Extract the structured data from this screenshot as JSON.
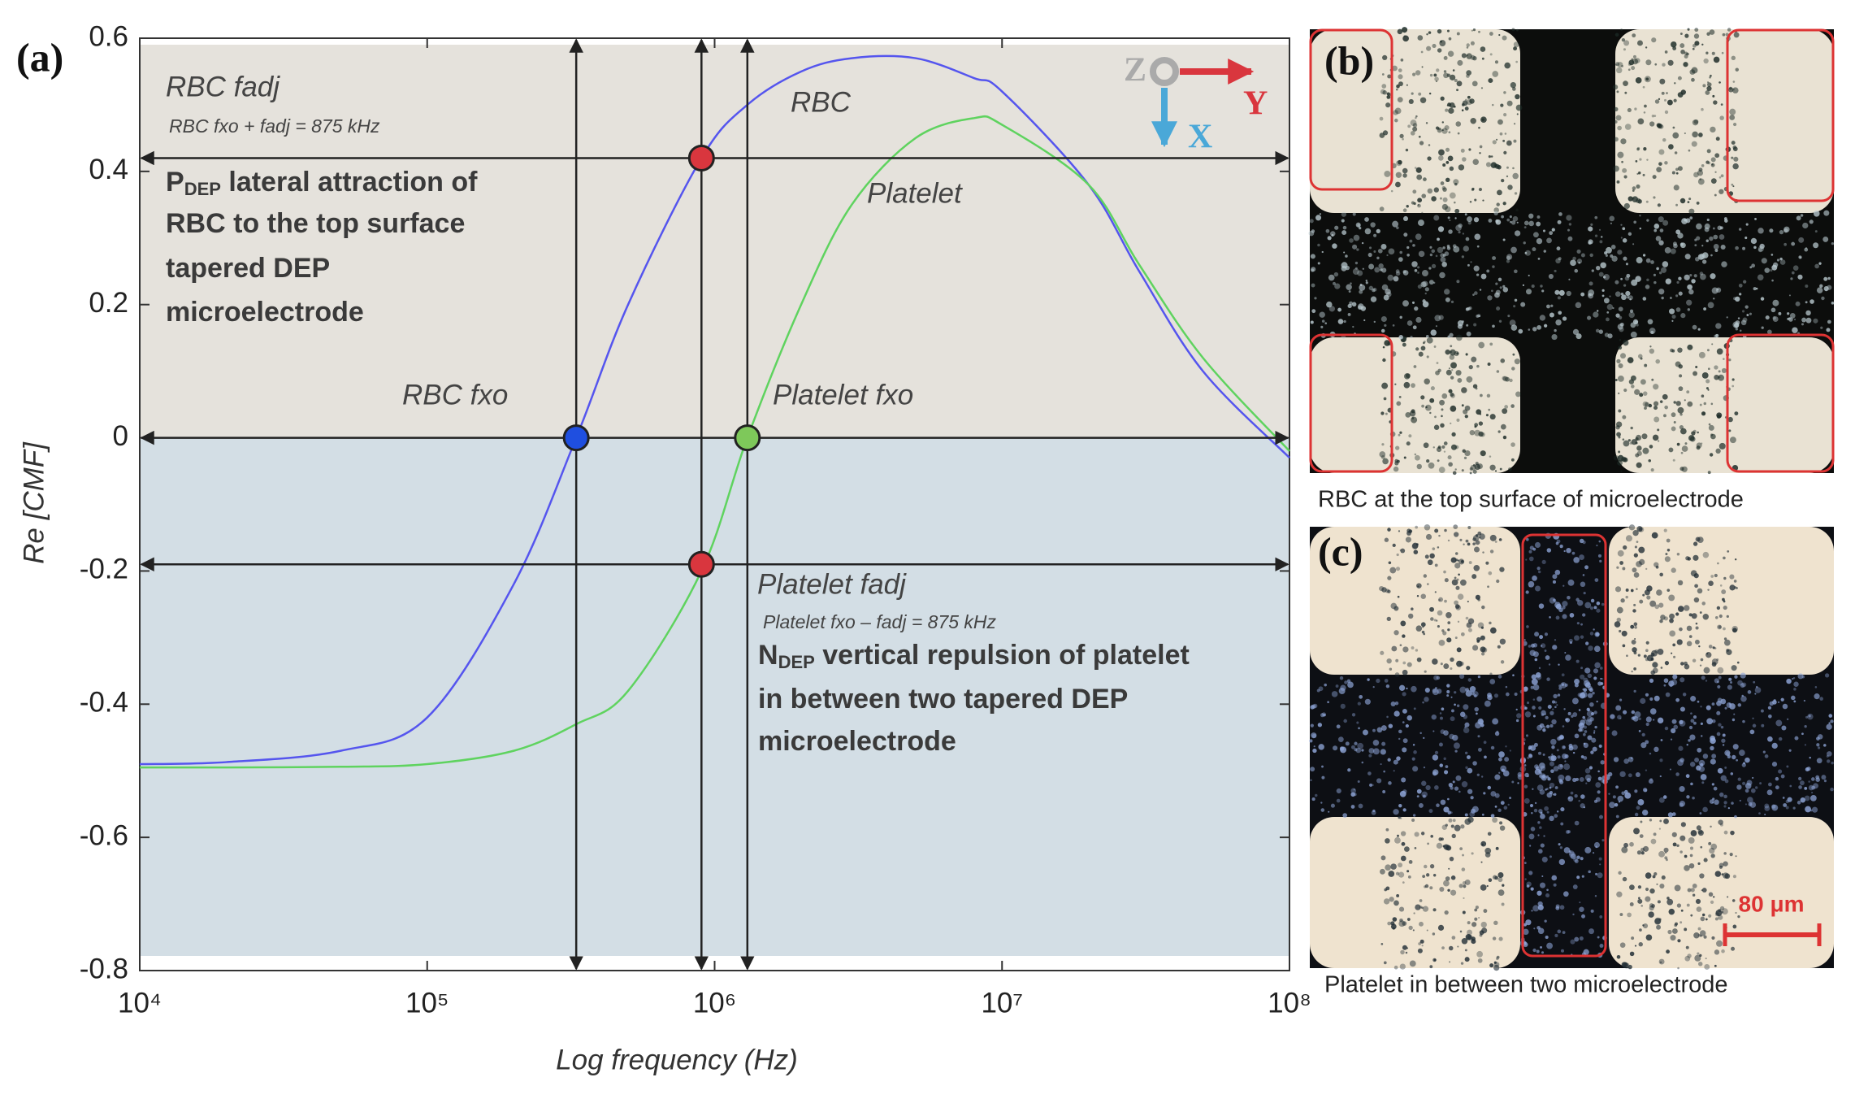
{
  "chart_data": {
    "type": "line",
    "panel_label": "(a)",
    "x_label": "Log frequency (Hz)",
    "y_label": "Re [CMF]",
    "xlog": true,
    "xlim": [
      10000,
      100000000
    ],
    "xticks": [
      {
        "value": 10000,
        "label": "10⁴"
      },
      {
        "value": 100000,
        "label": "10⁵"
      },
      {
        "value": 1000000,
        "label": "10⁶"
      },
      {
        "value": 10000000,
        "label": "10⁷"
      },
      {
        "value": 100000000,
        "label": "10⁸"
      }
    ],
    "ylim": [
      -0.8,
      0.6
    ],
    "yticks": [
      0.6,
      0.4,
      0.2,
      0,
      -0.2,
      -0.4,
      -0.6,
      -0.8
    ],
    "shade_colors": [
      "#e5e2dc",
      "#d3dee5"
    ],
    "x": [
      10000,
      20000,
      50000,
      100000,
      200000,
      330000,
      500000,
      900000,
      1300000,
      2000000,
      3000000,
      5000000,
      8000000,
      10000000,
      20000000,
      30000000,
      50000000,
      100000000
    ],
    "series": [
      {
        "name": "RBC",
        "color": "#5555ee",
        "values": [
          -0.49,
          -0.487,
          -0.47,
          -0.42,
          -0.22,
          0,
          0.2,
          0.42,
          0.5,
          0.55,
          0.57,
          0.57,
          0.54,
          0.52,
          0.38,
          0.25,
          0.1,
          -0.03
        ]
      },
      {
        "name": "Platelet",
        "color": "#5fd35f",
        "values": [
          -0.495,
          -0.495,
          -0.494,
          -0.49,
          -0.47,
          -0.43,
          -0.38,
          -0.2,
          0,
          0.2,
          0.35,
          0.45,
          0.48,
          0.47,
          0.38,
          0.26,
          0.12,
          -0.02
        ]
      }
    ],
    "vlines": [
      330000,
      900000,
      1300000
    ],
    "hlines": [
      0.42,
      0,
      -0.19
    ],
    "points": [
      {
        "x": 330000,
        "y": 0,
        "color": "#1f4fe0"
      },
      {
        "x": 1300000,
        "y": 0,
        "color": "#7ec85a"
      },
      {
        "x": 900000,
        "y": 0.42,
        "color": "#d9363e"
      },
      {
        "x": 900000,
        "y": -0.19,
        "color": "#d9363e"
      }
    ],
    "annotations": {
      "rbc_fadj": "RBC fadj",
      "rbc_eq": "RBC fxo + fadj = 875 kHz",
      "rbc_fxo": "RBC fxo",
      "platelet_fxo": "Platelet fxo",
      "platelet_fadj": "Platelet fadj",
      "platelet_eq": "Platelet fxo – fadj = 875 kHz",
      "pdep": {
        "symbol": "P",
        "sub": "DEP",
        "lines": [
          " lateral attraction of",
          "RBC to the top surface",
          "tapered  DEP",
          "microelectrode"
        ]
      },
      "ndep": {
        "symbol": "N",
        "sub": "DEP",
        "lines": [
          " vertical repulsion of platelet",
          "in between two tapered DEP",
          "microelectrode"
        ]
      }
    },
    "axes_labels": {
      "z": "Z",
      "y": "Y",
      "x": "X"
    }
  },
  "panels": [
    {
      "label": "(b)",
      "caption": "RBC at the top surface of microelectrode"
    },
    {
      "label": "(c)",
      "caption": "Platelet  in between two microelectrode",
      "scale_bar": "80 μm"
    }
  ]
}
